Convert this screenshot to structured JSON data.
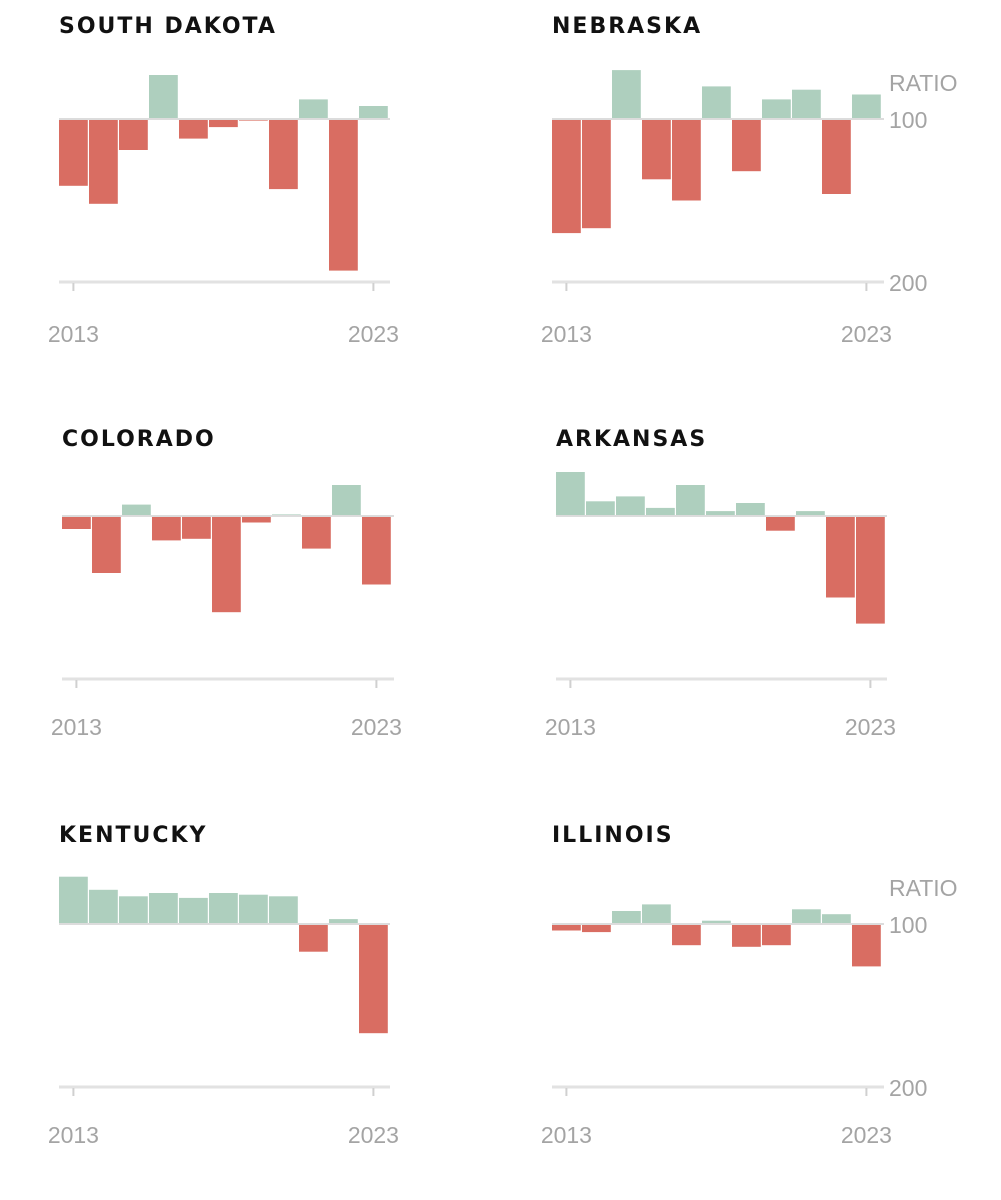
{
  "chart_data": [
    {
      "type": "bar",
      "title": "SOUTH DAKOTA",
      "categories": [
        "2013",
        "2014",
        "2015",
        "2016",
        "2017",
        "2018",
        "2019",
        "2020",
        "2021",
        "2022",
        "2023",
        "2024"
      ],
      "x_tick_labels": [
        "2013",
        "2023"
      ],
      "values": [
        -41,
        -52,
        -19,
        27,
        -12,
        -5,
        -1,
        -43,
        12,
        -93,
        8,
        0
      ],
      "baseline": 100,
      "ylim": [
        100,
        200
      ],
      "show_ratio_axis": false,
      "axis": {
        "unit_label": "",
        "baseline_label": "",
        "floor_label": ""
      },
      "colors": {
        "above": "#aecfbe",
        "below": "#d96d62"
      }
    },
    {
      "type": "bar",
      "title": "NEBRASKA",
      "categories": [
        "2013",
        "2014",
        "2015",
        "2016",
        "2017",
        "2018",
        "2019",
        "2020",
        "2021",
        "2022",
        "2023",
        "2024"
      ],
      "x_tick_labels": [
        "2013",
        "2023"
      ],
      "values": [
        -70,
        -67,
        30,
        -37,
        -50,
        20,
        -32,
        12,
        18,
        -46,
        15,
        0
      ],
      "baseline": 100,
      "ylim": [
        100,
        200
      ],
      "show_ratio_axis": true,
      "axis": {
        "unit_label": "RATIO",
        "baseline_label": "100",
        "floor_label": "200"
      },
      "colors": {
        "above": "#aecfbe",
        "below": "#d96d62"
      }
    },
    {
      "type": "bar",
      "title": "COLORADO",
      "categories": [
        "2013",
        "2014",
        "2015",
        "2016",
        "2017",
        "2018",
        "2019",
        "2020",
        "2021",
        "2022",
        "2023",
        "2024"
      ],
      "x_tick_labels": [
        "2013",
        "2023"
      ],
      "values": [
        -8,
        -35,
        7,
        -15,
        -14,
        -59,
        -4,
        1,
        -20,
        19,
        -42,
        0
      ],
      "baseline": 100,
      "ylim": [
        100,
        200
      ],
      "show_ratio_axis": false,
      "axis": {
        "unit_label": "",
        "baseline_label": "",
        "floor_label": ""
      },
      "colors": {
        "above": "#aecfbe",
        "below": "#d96d62"
      }
    },
    {
      "type": "bar",
      "title": "ARKANSAS",
      "categories": [
        "2013",
        "2014",
        "2015",
        "2016",
        "2017",
        "2018",
        "2019",
        "2020",
        "2021",
        "2022",
        "2023",
        "2024"
      ],
      "x_tick_labels": [
        "2013",
        "2023"
      ],
      "values": [
        27,
        9,
        12,
        5,
        19,
        3,
        8,
        -9,
        3,
        -50,
        -66,
        0
      ],
      "baseline": 100,
      "ylim": [
        100,
        200
      ],
      "show_ratio_axis": false,
      "axis": {
        "unit_label": "",
        "baseline_label": "",
        "floor_label": ""
      },
      "colors": {
        "above": "#aecfbe",
        "below": "#d96d62"
      }
    },
    {
      "type": "bar",
      "title": "KENTUCKY",
      "categories": [
        "2013",
        "2014",
        "2015",
        "2016",
        "2017",
        "2018",
        "2019",
        "2020",
        "2021",
        "2022",
        "2023",
        "2024"
      ],
      "x_tick_labels": [
        "2013",
        "2023"
      ],
      "values": [
        29,
        21,
        17,
        19,
        16,
        19,
        18,
        17,
        -17,
        3,
        -67,
        0
      ],
      "baseline": 100,
      "ylim": [
        100,
        200
      ],
      "show_ratio_axis": false,
      "axis": {
        "unit_label": "",
        "baseline_label": "",
        "floor_label": ""
      },
      "colors": {
        "above": "#aecfbe",
        "below": "#d96d62"
      }
    },
    {
      "type": "bar",
      "title": "ILLINOIS",
      "categories": [
        "2013",
        "2014",
        "2015",
        "2016",
        "2017",
        "2018",
        "2019",
        "2020",
        "2021",
        "2022",
        "2023",
        "2024"
      ],
      "x_tick_labels": [
        "2013",
        "2023"
      ],
      "values": [
        -4,
        -5,
        8,
        12,
        -13,
        2,
        -14,
        -13,
        9,
        6,
        -26,
        0
      ],
      "baseline": 100,
      "ylim": [
        100,
        200
      ],
      "show_ratio_axis": true,
      "axis": {
        "unit_label": "RATIO",
        "baseline_label": "100",
        "floor_label": "200"
      },
      "colors": {
        "above": "#aecfbe",
        "below": "#d96d62"
      }
    }
  ]
}
